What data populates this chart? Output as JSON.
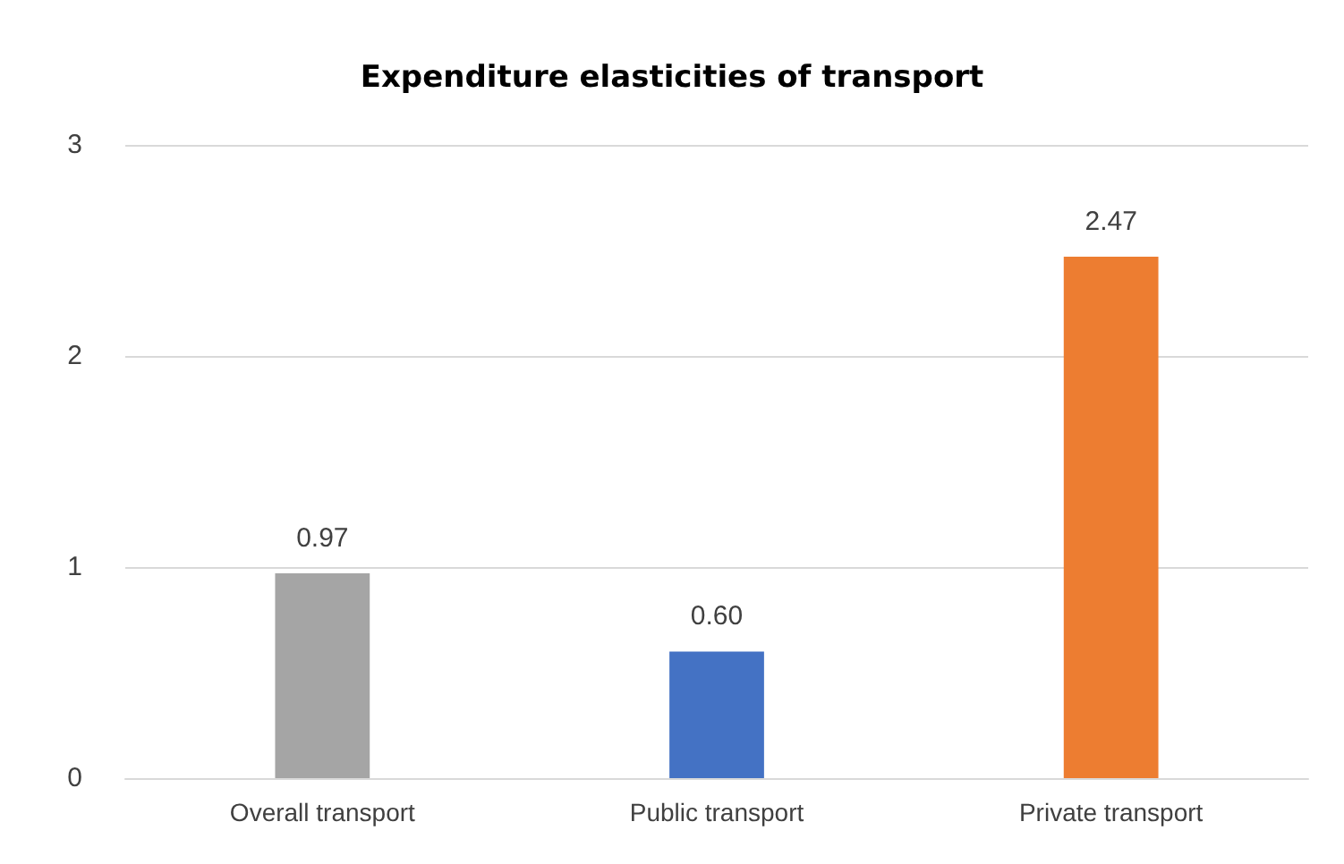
{
  "chart_data": {
    "type": "bar",
    "title": "Expenditure elasticities of transport",
    "categories": [
      "Overall transport",
      "Public transport",
      "Private transport"
    ],
    "values": [
      0.97,
      0.6,
      2.47
    ],
    "colors": [
      "#a5a5a5",
      "#4472c4",
      "#ed7d31"
    ],
    "value_labels": [
      "0.97",
      "0.60",
      "2.47"
    ],
    "ylim": [
      0,
      3
    ],
    "yticks": [
      0,
      1,
      2,
      3
    ],
    "grid": "y"
  }
}
